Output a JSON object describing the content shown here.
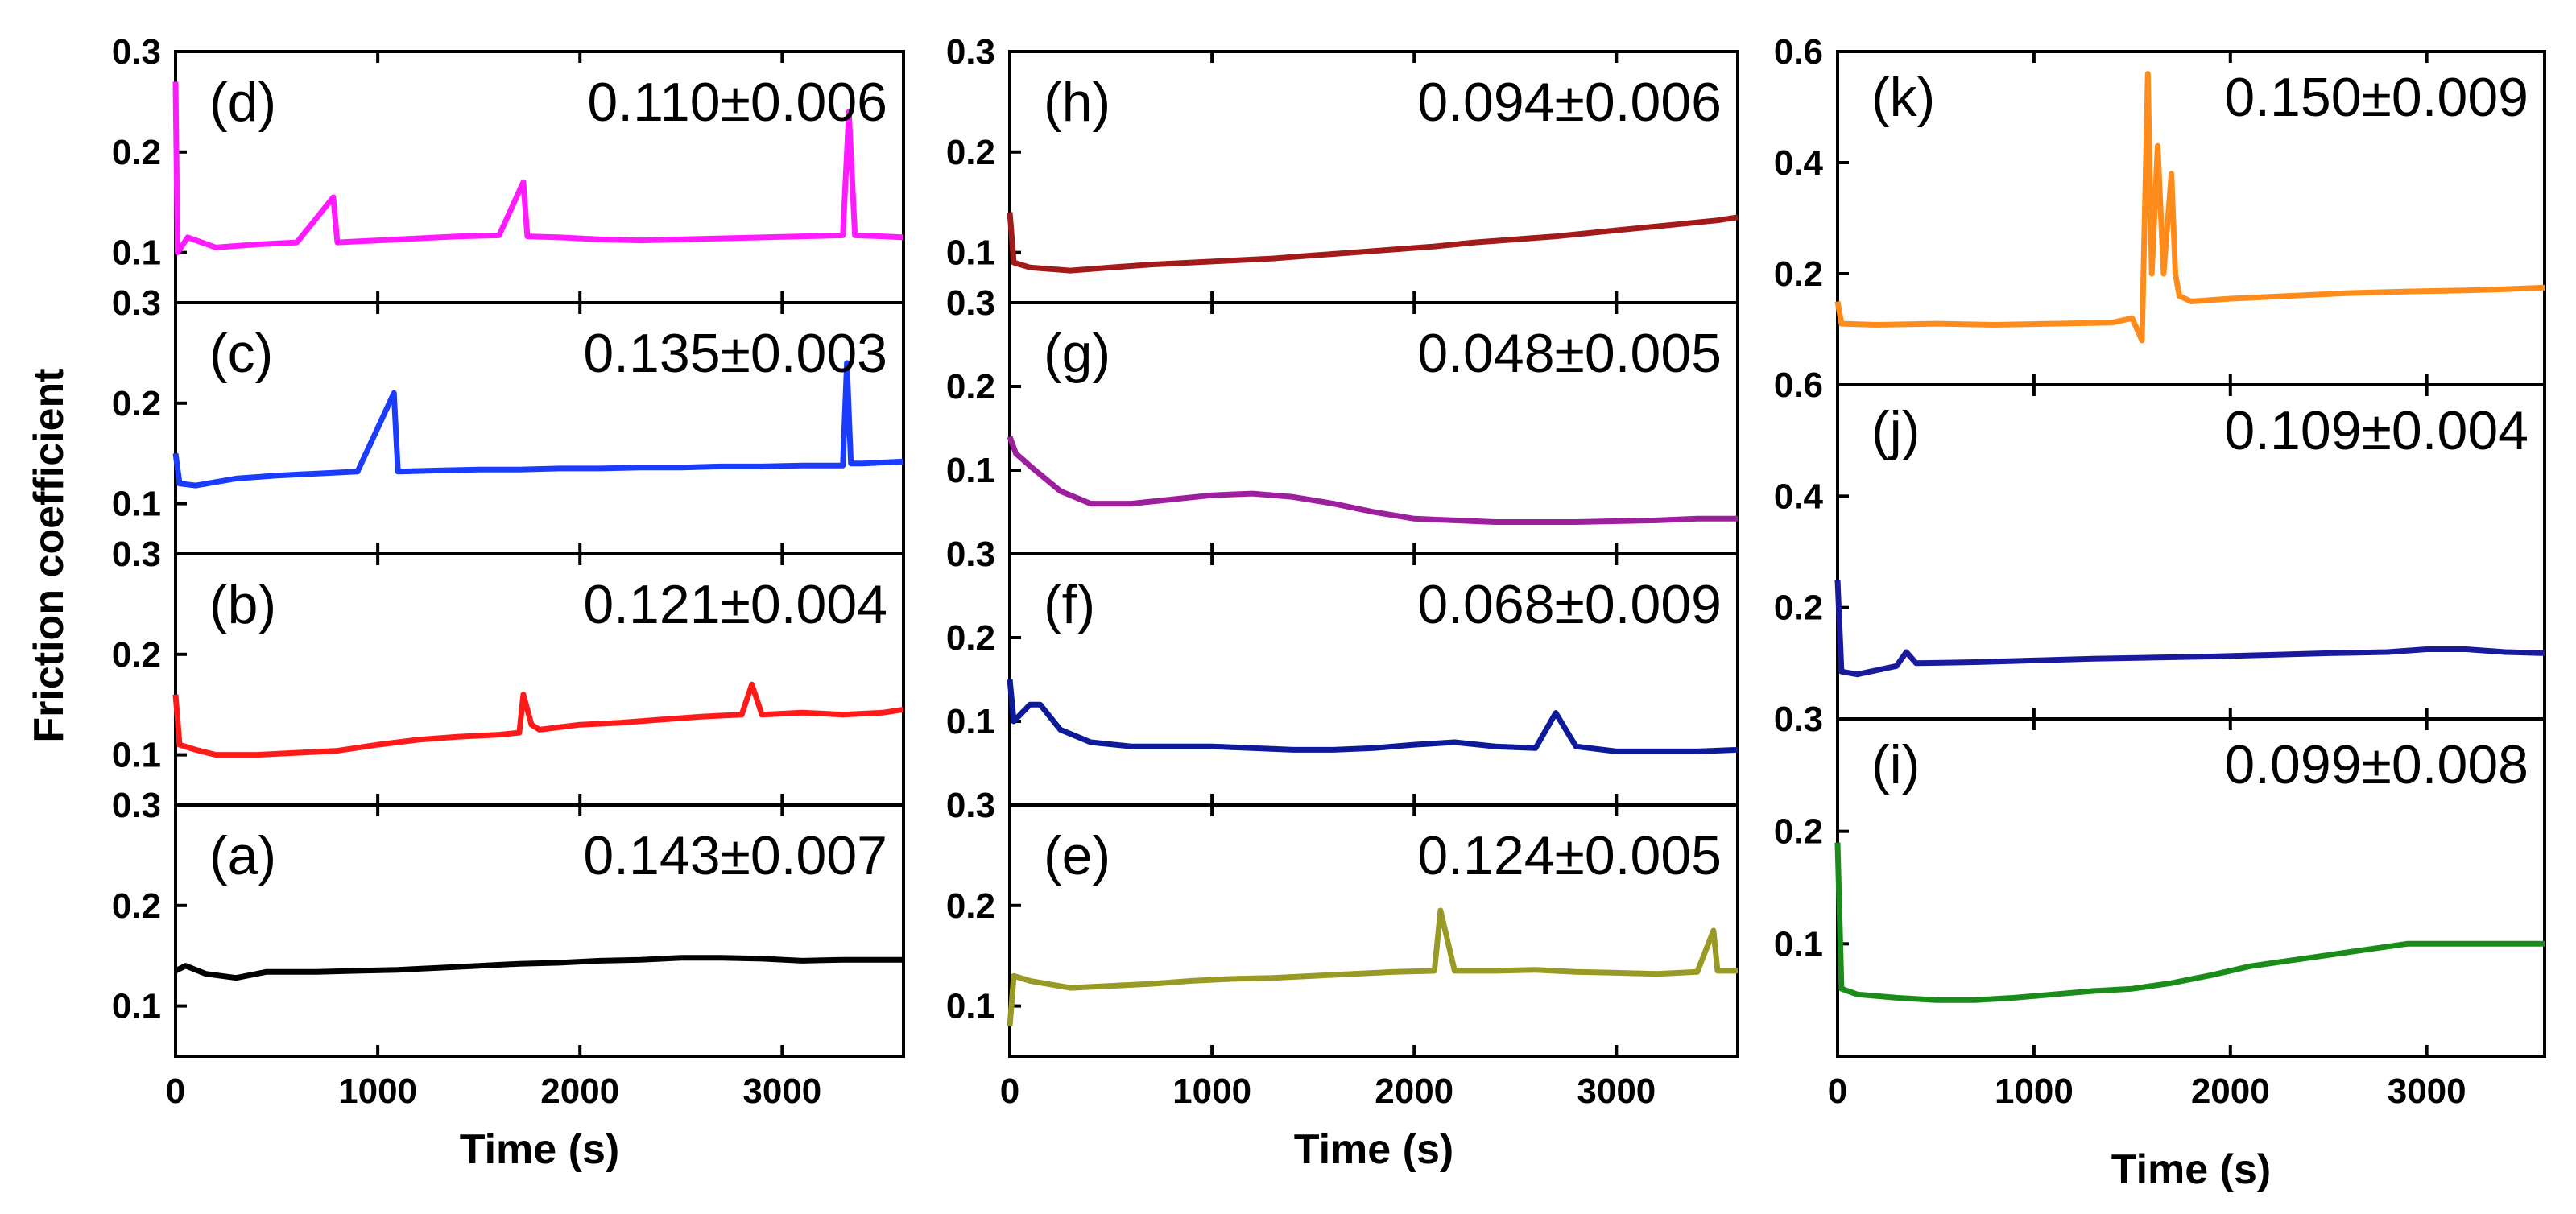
{
  "figure": {
    "ylabel": "Friction coefficient",
    "columns": [
      {
        "xlabel": "Time (s)"
      },
      {
        "xlabel": "Time (s)"
      },
      {
        "xlabel": "Time (s)"
      }
    ]
  },
  "chart_data": [
    {
      "type": "line",
      "panel": "(a)",
      "annotation": "0.143±0.007",
      "color": "#000000",
      "xlim": [
        0,
        3600
      ],
      "ylim": [
        0.05,
        0.3
      ],
      "yticks": [
        "0.3",
        "0.2",
        "0.1"
      ],
      "xticks": [
        "0",
        "1000",
        "2000",
        "3000"
      ],
      "xlabel": "Time (s)",
      "ylabel": "Friction coefficient",
      "x": [
        0,
        50,
        150,
        300,
        450,
        700,
        900,
        1100,
        1300,
        1500,
        1700,
        1900,
        2100,
        2300,
        2500,
        2700,
        2900,
        3100,
        3300,
        3500,
        3600
      ],
      "y": [
        0.135,
        0.14,
        0.132,
        0.128,
        0.134,
        0.134,
        0.135,
        0.136,
        0.138,
        0.14,
        0.142,
        0.143,
        0.145,
        0.146,
        0.148,
        0.148,
        0.147,
        0.145,
        0.146,
        0.146,
        0.146
      ]
    },
    {
      "type": "line",
      "panel": "(b)",
      "annotation": "0.121±0.004",
      "color": "#ff1a1a",
      "xlim": [
        0,
        3600
      ],
      "ylim": [
        0.05,
        0.3
      ],
      "yticks": [
        "0.3",
        "0.2",
        "0.1"
      ],
      "xticks": [
        "0",
        "1000",
        "2000",
        "3000"
      ],
      "xlabel": "Time (s)",
      "ylabel": "Friction coefficient",
      "x": [
        0,
        20,
        100,
        200,
        400,
        600,
        800,
        1000,
        1200,
        1400,
        1600,
        1700,
        1720,
        1760,
        1800,
        2000,
        2200,
        2400,
        2600,
        2800,
        2850,
        2900,
        3100,
        3300,
        3500,
        3600
      ],
      "y": [
        0.16,
        0.11,
        0.105,
        0.1,
        0.1,
        0.102,
        0.104,
        0.11,
        0.115,
        0.118,
        0.12,
        0.122,
        0.16,
        0.13,
        0.125,
        0.13,
        0.132,
        0.135,
        0.138,
        0.14,
        0.17,
        0.14,
        0.142,
        0.14,
        0.142,
        0.145
      ]
    },
    {
      "type": "line",
      "panel": "(c)",
      "annotation": "0.135±0.003",
      "color": "#1a3cff",
      "xlim": [
        0,
        3600
      ],
      "ylim": [
        0.05,
        0.3
      ],
      "yticks": [
        "0.3",
        "0.2",
        "0.1"
      ],
      "xticks": [
        "0",
        "1000",
        "2000",
        "3000"
      ],
      "xlabel": "Time (s)",
      "ylabel": "Friction coefficient",
      "x": [
        0,
        20,
        100,
        300,
        500,
        700,
        900,
        1080,
        1100,
        1300,
        1500,
        1700,
        1900,
        2100,
        2300,
        2500,
        2700,
        2900,
        3100,
        3300,
        3320,
        3340,
        3400,
        3600
      ],
      "y": [
        0.15,
        0.12,
        0.118,
        0.125,
        0.128,
        0.13,
        0.132,
        0.21,
        0.132,
        0.133,
        0.134,
        0.134,
        0.135,
        0.135,
        0.136,
        0.136,
        0.137,
        0.137,
        0.138,
        0.138,
        0.24,
        0.14,
        0.14,
        0.142
      ]
    },
    {
      "type": "line",
      "panel": "(d)",
      "annotation": "0.110±0.006",
      "color": "#ff1aff",
      "xlim": [
        0,
        3600
      ],
      "ylim": [
        0.05,
        0.3
      ],
      "yticks": [
        "0.3",
        "0.2",
        "0.1"
      ],
      "xticks": [
        "0",
        "1000",
        "2000",
        "3000"
      ],
      "xlabel": "Time (s)",
      "ylabel": "Friction coefficient",
      "x": [
        0,
        10,
        60,
        200,
        400,
        600,
        780,
        800,
        1000,
        1200,
        1400,
        1600,
        1720,
        1740,
        1900,
        2100,
        2300,
        2500,
        2700,
        2900,
        3100,
        3300,
        3330,
        3360,
        3500,
        3600
      ],
      "y": [
        0.27,
        0.1,
        0.115,
        0.105,
        0.108,
        0.11,
        0.155,
        0.11,
        0.112,
        0.114,
        0.116,
        0.117,
        0.17,
        0.116,
        0.115,
        0.113,
        0.112,
        0.113,
        0.114,
        0.115,
        0.116,
        0.117,
        0.24,
        0.117,
        0.116,
        0.115
      ]
    },
    {
      "type": "line",
      "panel": "(e)",
      "annotation": "0.124±0.005",
      "color": "#999926",
      "xlim": [
        0,
        3600
      ],
      "ylim": [
        0.05,
        0.3
      ],
      "yticks": [
        "0.3",
        "0.2",
        "0.1"
      ],
      "xticks": [
        "0",
        "1000",
        "2000",
        "3000"
      ],
      "xlabel": "Time (s)",
      "ylabel": "Friction coefficient",
      "x": [
        0,
        20,
        100,
        300,
        500,
        700,
        900,
        1100,
        1300,
        1500,
        1700,
        1900,
        2100,
        2130,
        2200,
        2400,
        2600,
        2800,
        3000,
        3200,
        3400,
        3480,
        3500,
        3600
      ],
      "y": [
        0.08,
        0.13,
        0.125,
        0.118,
        0.12,
        0.122,
        0.125,
        0.127,
        0.128,
        0.13,
        0.132,
        0.134,
        0.135,
        0.195,
        0.135,
        0.135,
        0.136,
        0.134,
        0.133,
        0.132,
        0.134,
        0.175,
        0.135,
        0.135
      ]
    },
    {
      "type": "line",
      "panel": "(f)",
      "annotation": "0.068±0.009",
      "color": "#0d1a99",
      "xlim": [
        0,
        3600
      ],
      "ylim": [
        0.0,
        0.3
      ],
      "yticks": [
        "0.3",
        "0.2",
        "0.1"
      ],
      "xticks": [
        "0",
        "1000",
        "2000",
        "3000"
      ],
      "xlabel": "Time (s)",
      "ylabel": "Friction coefficient",
      "x": [
        0,
        20,
        100,
        150,
        250,
        400,
        600,
        800,
        1000,
        1200,
        1400,
        1600,
        1800,
        2000,
        2200,
        2400,
        2600,
        2700,
        2800,
        3000,
        3200,
        3400,
        3600
      ],
      "y": [
        0.15,
        0.1,
        0.12,
        0.12,
        0.09,
        0.075,
        0.07,
        0.07,
        0.07,
        0.068,
        0.066,
        0.066,
        0.068,
        0.072,
        0.075,
        0.07,
        0.068,
        0.11,
        0.07,
        0.064,
        0.064,
        0.064,
        0.066
      ]
    },
    {
      "type": "line",
      "panel": "(g)",
      "annotation": "0.048±0.005",
      "color": "#9e1f9e",
      "xlim": [
        0,
        3600
      ],
      "ylim": [
        0.0,
        0.3
      ],
      "yticks": [
        "0.3",
        "0.2",
        "0.1"
      ],
      "xticks": [
        "0",
        "1000",
        "2000",
        "3000"
      ],
      "xlabel": "Time (s)",
      "ylabel": "Friction coefficient",
      "x": [
        0,
        30,
        100,
        250,
        400,
        600,
        800,
        1000,
        1200,
        1400,
        1600,
        1800,
        2000,
        2200,
        2400,
        2600,
        2800,
        3000,
        3200,
        3400,
        3600
      ],
      "y": [
        0.14,
        0.12,
        0.105,
        0.075,
        0.06,
        0.06,
        0.065,
        0.07,
        0.072,
        0.068,
        0.06,
        0.05,
        0.042,
        0.04,
        0.038,
        0.038,
        0.038,
        0.039,
        0.04,
        0.042,
        0.042
      ]
    },
    {
      "type": "line",
      "panel": "(h)",
      "annotation": "0.094±0.006",
      "color": "#a31a1a",
      "xlim": [
        0,
        3600
      ],
      "ylim": [
        0.05,
        0.3
      ],
      "yticks": [
        "0.3",
        "0.2",
        "0.1"
      ],
      "xticks": [
        "0",
        "1000",
        "2000",
        "3000"
      ],
      "xlabel": "Time (s)",
      "ylabel": "Friction coefficient",
      "x": [
        0,
        20,
        100,
        300,
        500,
        700,
        900,
        1100,
        1300,
        1500,
        1700,
        1900,
        2100,
        2300,
        2500,
        2700,
        2900,
        3100,
        3300,
        3500,
        3600
      ],
      "y": [
        0.14,
        0.09,
        0.085,
        0.082,
        0.085,
        0.088,
        0.09,
        0.092,
        0.094,
        0.097,
        0.1,
        0.103,
        0.106,
        0.11,
        0.113,
        0.116,
        0.12,
        0.124,
        0.128,
        0.132,
        0.135
      ]
    },
    {
      "type": "line",
      "panel": "(i)",
      "annotation": "0.099±0.008",
      "color": "#1a8c1a",
      "xlim": [
        0,
        3600
      ],
      "ylim": [
        0.0,
        0.3
      ],
      "yticks": [
        "0.3",
        "0.2",
        "0.1"
      ],
      "xticks": [
        "0",
        "1000",
        "2000",
        "3000"
      ],
      "xlabel": "Time (s)",
      "ylabel": "Friction coefficient",
      "x": [
        0,
        20,
        100,
        300,
        500,
        700,
        900,
        1100,
        1300,
        1500,
        1700,
        1900,
        2100,
        2300,
        2500,
        2700,
        2900,
        3100,
        3300,
        3500,
        3600
      ],
      "y": [
        0.19,
        0.06,
        0.055,
        0.052,
        0.05,
        0.05,
        0.052,
        0.055,
        0.058,
        0.06,
        0.065,
        0.072,
        0.08,
        0.085,
        0.09,
        0.095,
        0.1,
        0.1,
        0.1,
        0.1,
        0.1
      ]
    },
    {
      "type": "line",
      "panel": "(j)",
      "annotation": "0.109±0.004",
      "color": "#1a1a9e",
      "xlim": [
        0,
        3600
      ],
      "ylim": [
        0.0,
        0.6
      ],
      "yticks": [
        "0.6",
        "0.4",
        "0.2"
      ],
      "xticks": [
        "0",
        "1000",
        "2000",
        "3000"
      ],
      "xlabel": "Time (s)",
      "ylabel": "Friction coefficient",
      "x": [
        0,
        20,
        100,
        300,
        350,
        400,
        700,
        1000,
        1300,
        1600,
        1900,
        2200,
        2500,
        2800,
        3000,
        3200,
        3400,
        3600
      ],
      "y": [
        0.25,
        0.085,
        0.08,
        0.095,
        0.12,
        0.1,
        0.102,
        0.105,
        0.108,
        0.11,
        0.112,
        0.115,
        0.118,
        0.12,
        0.125,
        0.125,
        0.12,
        0.118
      ]
    },
    {
      "type": "line",
      "panel": "(k)",
      "annotation": "0.150±0.009",
      "color": "#ff8c1a",
      "xlim": [
        0,
        3600
      ],
      "ylim": [
        0.0,
        0.6
      ],
      "yticks": [
        "0.6",
        "0.4",
        "0.2"
      ],
      "xticks": [
        "0",
        "1000",
        "2000",
        "3000"
      ],
      "xlabel": "Time (s)",
      "ylabel": "Friction coefficient",
      "x": [
        0,
        20,
        200,
        500,
        800,
        1100,
        1400,
        1500,
        1550,
        1580,
        1600,
        1630,
        1660,
        1700,
        1720,
        1740,
        1800,
        2000,
        2300,
        2600,
        2900,
        3200,
        3400,
        3600
      ],
      "y": [
        0.15,
        0.11,
        0.108,
        0.11,
        0.108,
        0.11,
        0.112,
        0.12,
        0.08,
        0.56,
        0.2,
        0.43,
        0.2,
        0.38,
        0.2,
        0.16,
        0.15,
        0.155,
        0.16,
        0.165,
        0.168,
        0.17,
        0.172,
        0.175
      ]
    }
  ]
}
